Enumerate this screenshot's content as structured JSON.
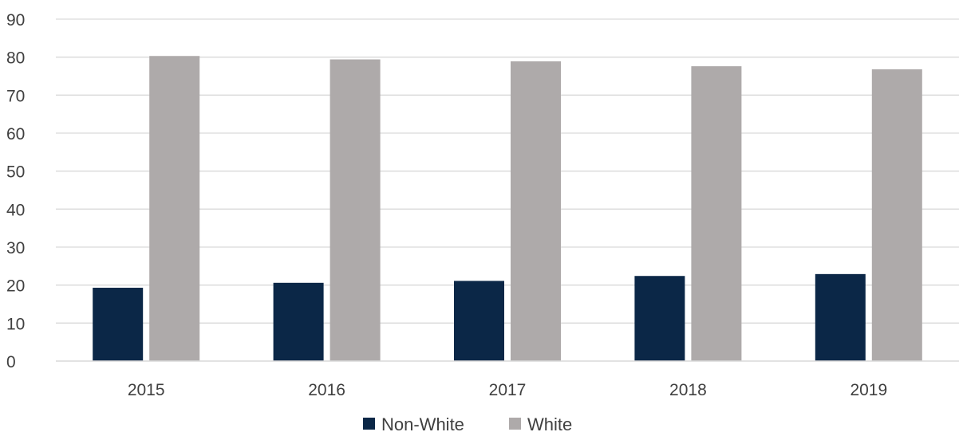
{
  "chart_data": {
    "type": "bar",
    "title": "",
    "xlabel": "",
    "ylabel": "",
    "categories": [
      "2015",
      "2016",
      "2017",
      "2018",
      "2019"
    ],
    "series": [
      {
        "name": "Non-White",
        "color": "#0b2747",
        "values": [
          19.3,
          20.6,
          21.1,
          22.4,
          22.9
        ]
      },
      {
        "name": "White",
        "color": "#aeaaaa",
        "values": [
          80.3,
          79.4,
          78.9,
          77.6,
          76.8
        ]
      }
    ],
    "ylim": [
      0,
      90
    ],
    "yticks": [
      0,
      10,
      20,
      30,
      40,
      50,
      60,
      70,
      80,
      90
    ],
    "grid": true,
    "legend_position": "bottom"
  }
}
